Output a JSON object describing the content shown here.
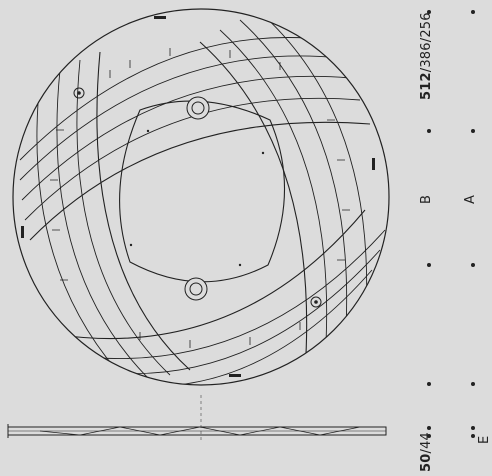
{
  "top_dimensions": {
    "primary": "512",
    "rest": "/386/256"
  },
  "marker_b": "B",
  "marker_a": "A",
  "thickness": {
    "primary": "50",
    "rest": "/44"
  },
  "marker_e": "E",
  "colors": {
    "background": "#dcdcdc",
    "line": "#222222",
    "body": "#dcdcdc"
  }
}
